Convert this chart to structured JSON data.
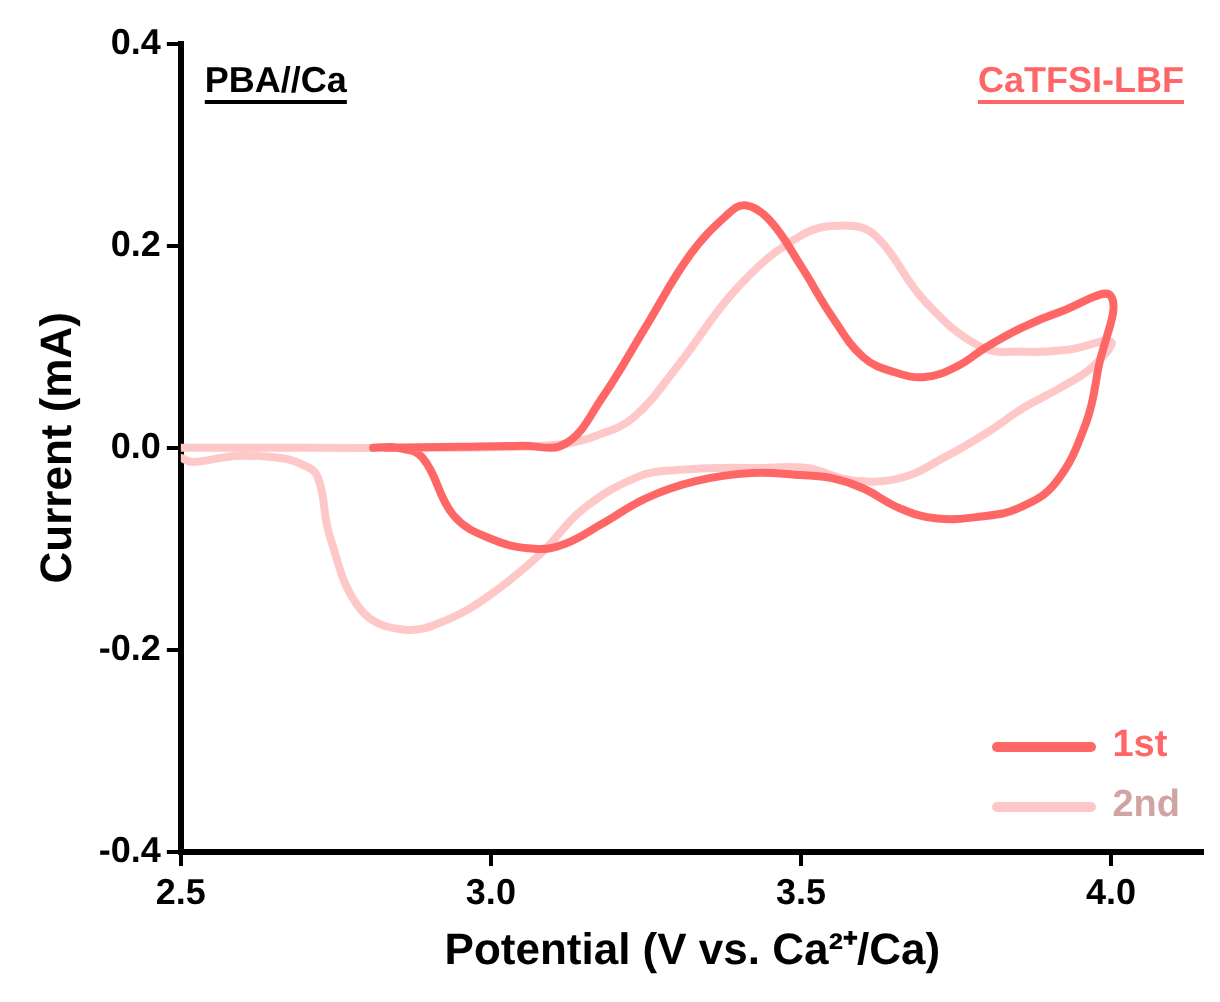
{
  "chart_data": {
    "type": "line",
    "xlabel": "Potential (V vs. Ca²⁺/Ca)",
    "ylabel": "Current (mA)",
    "annotations": [
      "PBA//Ca",
      "CaTFSI-LBF"
    ],
    "xlim": [
      2.5,
      4.15
    ],
    "xticks": [
      2.5,
      {
        "value": 3,
        "label": "3.0"
      },
      3.5,
      {
        "value": 4,
        "label": "4.0"
      }
    ],
    "ylim": [
      -0.4,
      0.4
    ],
    "yticks": [
      -0.4,
      -0.2,
      {
        "value": 0,
        "label": "0.0"
      },
      0.2,
      0.4
    ],
    "grid": false,
    "legend": "bottom right",
    "series": [
      {
        "name": "1st",
        "color": "#ff6666",
        "x": [
          2.83,
          2.95,
          3.05,
          3.12,
          3.18,
          3.25,
          3.32,
          3.38,
          3.41,
          3.45,
          3.5,
          3.55,
          3.6,
          3.65,
          3.7,
          3.75,
          3.8,
          3.86,
          3.92,
          4.0,
          3.98,
          3.96,
          3.91,
          3.85,
          3.79,
          3.72,
          3.66,
          3.6,
          3.55,
          3.5,
          3.42,
          3.33,
          3.25,
          3.18,
          3.12,
          3.07,
          3.0,
          2.94,
          2.89,
          2.85,
          2.81
        ],
        "values": [
          0.0,
          0.001,
          0.002,
          0.004,
          0.05,
          0.12,
          0.19,
          0.23,
          0.24,
          0.225,
          0.18,
          0.13,
          0.09,
          0.075,
          0.07,
          0.08,
          0.1,
          0.12,
          0.135,
          0.15,
          0.08,
          0.025,
          -0.035,
          -0.06,
          -0.068,
          -0.07,
          -0.06,
          -0.04,
          -0.03,
          -0.027,
          -0.025,
          -0.033,
          -0.05,
          -0.075,
          -0.095,
          -0.1,
          -0.09,
          -0.067,
          -0.01,
          0.0,
          0.0
        ]
      },
      {
        "name": "2nd",
        "color": "#ffc8c8",
        "x": [
          2.5,
          2.7,
          2.9,
          3.05,
          3.12,
          3.17,
          3.23,
          3.3,
          3.4,
          3.5,
          3.57,
          3.62,
          3.7,
          3.79,
          3.86,
          3.93,
          4.0,
          3.97,
          3.92,
          3.86,
          3.8,
          3.73,
          3.66,
          3.58,
          3.51,
          3.43,
          3.37,
          3.3,
          3.24,
          3.15,
          3.08,
          3.0,
          2.93,
          2.86,
          2.79,
          2.74,
          2.72,
          2.69,
          2.66,
          2.59,
          2.52,
          2.5
        ],
        "values": [
          0.0,
          0.0,
          0.0,
          0.001,
          0.004,
          0.012,
          0.03,
          0.08,
          0.16,
          0.21,
          0.22,
          0.21,
          0.145,
          0.1,
          0.095,
          0.097,
          0.105,
          0.08,
          0.06,
          0.04,
          0.015,
          -0.01,
          -0.03,
          -0.032,
          -0.02,
          -0.02,
          -0.02,
          -0.022,
          -0.028,
          -0.06,
          -0.105,
          -0.145,
          -0.17,
          -0.18,
          -0.16,
          -0.087,
          -0.028,
          -0.015,
          -0.01,
          -0.008,
          -0.014,
          -0.01
        ]
      }
    ]
  }
}
